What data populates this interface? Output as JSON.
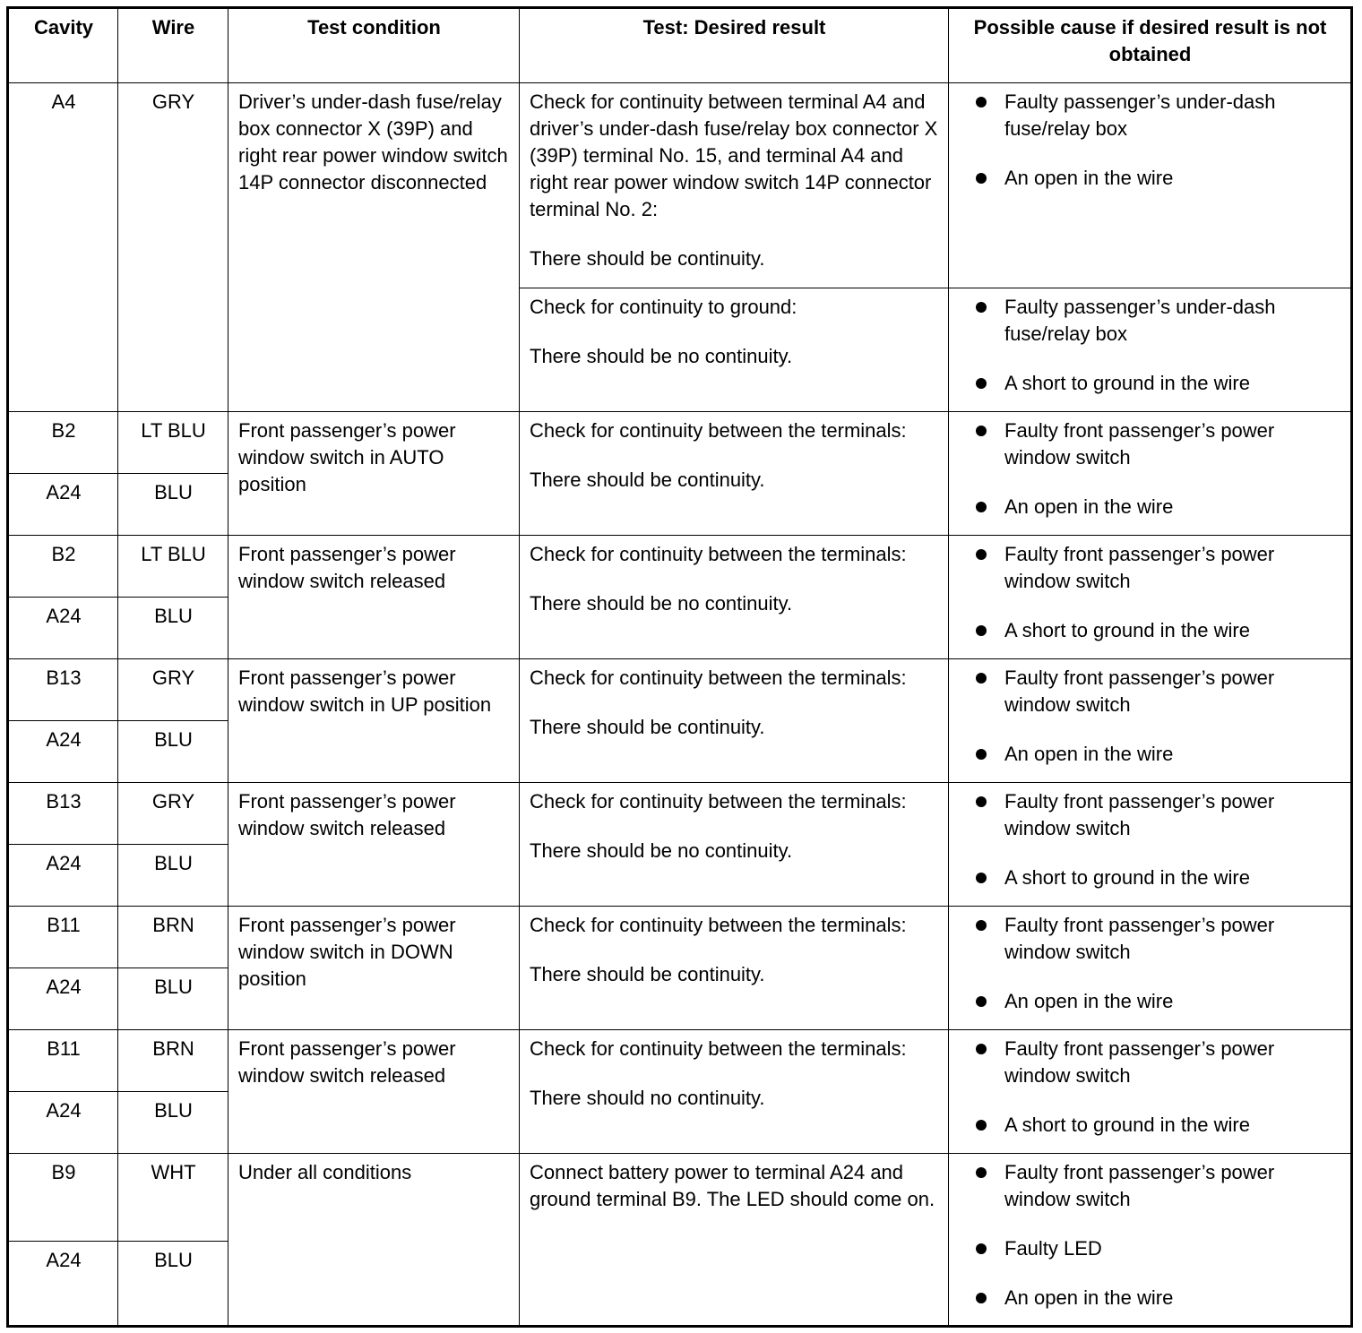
{
  "headers": [
    "Cavity",
    "Wire",
    "Test condition",
    "Test: Desired result",
    "Possible cause if desired result is not obtained"
  ],
  "a4": {
    "cavity": "A4",
    "wire": "GRY",
    "condition": "Driver’s under-dash fuse/relay box connector X (39P) and right rear power window switch 14P connector disconnected",
    "tests": [
      {
        "result": [
          "Check for continuity between terminal A4 and driver’s under-dash fuse/relay box connector X (39P) terminal No. 15, and terminal A4 and right rear power window switch 14P connector terminal No. 2:",
          "There should be continuity."
        ],
        "causes": [
          "Faulty passenger’s under-dash fuse/relay box",
          "An open in the wire"
        ]
      },
      {
        "result": [
          "Check for continuity to ground:",
          "There should be no continuity."
        ],
        "causes": [
          "Faulty passenger’s under-dash fuse/relay box",
          "A short to ground in the wire"
        ]
      }
    ]
  },
  "groups": [
    {
      "pins": [
        [
          "B2",
          "LT BLU"
        ],
        [
          "A24",
          "BLU"
        ]
      ],
      "condition": "Front passenger’s power window switch in AUTO position",
      "result": [
        "Check for continuity between the terminals:",
        "There should be continuity."
      ],
      "causes": [
        "Faulty front passenger’s power window switch",
        "An open in the wire"
      ]
    },
    {
      "pins": [
        [
          "B2",
          "LT BLU"
        ],
        [
          "A24",
          "BLU"
        ]
      ],
      "condition": "Front passenger’s power window switch released",
      "result": [
        "Check for continuity between the terminals:",
        "There should be no continuity."
      ],
      "causes": [
        "Faulty front passenger’s power window switch",
        "A short to ground in the wire"
      ]
    },
    {
      "pins": [
        [
          "B13",
          "GRY"
        ],
        [
          "A24",
          "BLU"
        ]
      ],
      "condition": "Front passenger’s power window switch in UP position",
      "result": [
        "Check for continuity between the terminals:",
        "There should be continuity."
      ],
      "causes": [
        "Faulty front passenger’s power window switch",
        "An open in the wire"
      ]
    },
    {
      "pins": [
        [
          "B13",
          "GRY"
        ],
        [
          "A24",
          "BLU"
        ]
      ],
      "condition": "Front passenger’s power window switch released",
      "result": [
        "Check for continuity between the terminals:",
        "There should be no continuity."
      ],
      "causes": [
        "Faulty front passenger’s power window switch",
        "A short to ground in the wire"
      ]
    },
    {
      "pins": [
        [
          "B11",
          "BRN"
        ],
        [
          "A24",
          "BLU"
        ]
      ],
      "condition": "Front passenger’s power window switch in DOWN position",
      "result": [
        "Check for continuity between the terminals:",
        "There should be continuity."
      ],
      "causes": [
        "Faulty front passenger’s power window switch",
        "An open in the wire"
      ]
    },
    {
      "pins": [
        [
          "B11",
          "BRN"
        ],
        [
          "A24",
          "BLU"
        ]
      ],
      "condition": "Front passenger’s power window switch released",
      "result": [
        "Check for continuity between the terminals:",
        "There should no continuity."
      ],
      "causes": [
        "Faulty front passenger’s power window switch",
        "A short to ground in the wire"
      ]
    },
    {
      "pins": [
        [
          "B9",
          "WHT"
        ],
        [
          "A24",
          "BLU"
        ]
      ],
      "condition": "Under all conditions",
      "result": [
        "Connect battery power to terminal A24 and ground terminal B9. The LED should come on."
      ],
      "causes": [
        "Faulty front passenger’s power window switch",
        "Faulty LED",
        "An open in the wire"
      ]
    }
  ]
}
